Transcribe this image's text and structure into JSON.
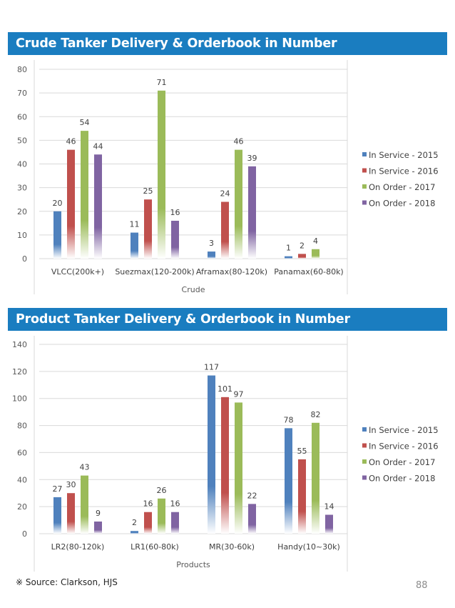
{
  "sections": [
    {
      "title": "Crude Tanker Delivery & Orderbook in Number"
    },
    {
      "title": "Product Tanker Delivery & Orderbook in Number"
    }
  ],
  "series_colors": {
    "In Service - 2015": "#4f81bd",
    "In Service - 2016": "#c0504d",
    "On Order - 2017": "#9bbb59",
    "On Order - 2018": "#8064a2"
  },
  "chart_data": [
    {
      "type": "bar",
      "title": "Crude Tanker Delivery & Orderbook in Number",
      "xlabel": "Crude",
      "ylabel": "",
      "ylim": [
        0,
        80
      ],
      "yticks": [
        0,
        10,
        20,
        30,
        40,
        50,
        60,
        70,
        80
      ],
      "grid": true,
      "legend": "right",
      "categories": [
        "VLCC(200k+)",
        "Suezmax(120-200k)",
        "Aframax(80-120k)",
        "Panamax(60-80k)"
      ],
      "series": [
        {
          "name": "In Service - 2015",
          "values": [
            20,
            11,
            3,
            1
          ]
        },
        {
          "name": "In Service - 2016",
          "values": [
            46,
            25,
            24,
            2
          ]
        },
        {
          "name": "On Order - 2017",
          "values": [
            54,
            71,
            46,
            4
          ]
        },
        {
          "name": "On Order - 2018",
          "values": [
            44,
            16,
            39,
            null
          ]
        }
      ]
    },
    {
      "type": "bar",
      "title": "Product Tanker Delivery & Orderbook in Number",
      "xlabel": "Products",
      "ylabel": "",
      "ylim": [
        0,
        140
      ],
      "yticks": [
        0,
        20,
        40,
        60,
        80,
        100,
        120,
        140
      ],
      "grid": true,
      "legend": "right",
      "categories": [
        "LR2(80-120k)",
        "LR1(60-80k)",
        "MR(30-60k)",
        "Handy(10~30k)"
      ],
      "series": [
        {
          "name": "In Service - 2015",
          "values": [
            27,
            2,
            117,
            78
          ]
        },
        {
          "name": "In Service - 2016",
          "values": [
            30,
            16,
            101,
            55
          ]
        },
        {
          "name": "On Order - 2017",
          "values": [
            43,
            26,
            97,
            82
          ]
        },
        {
          "name": "On Order - 2018",
          "values": [
            9,
            16,
            22,
            14
          ]
        }
      ]
    }
  ],
  "footer": {
    "source": "※ Source: Clarkson,  HJS",
    "page_number": "88"
  }
}
